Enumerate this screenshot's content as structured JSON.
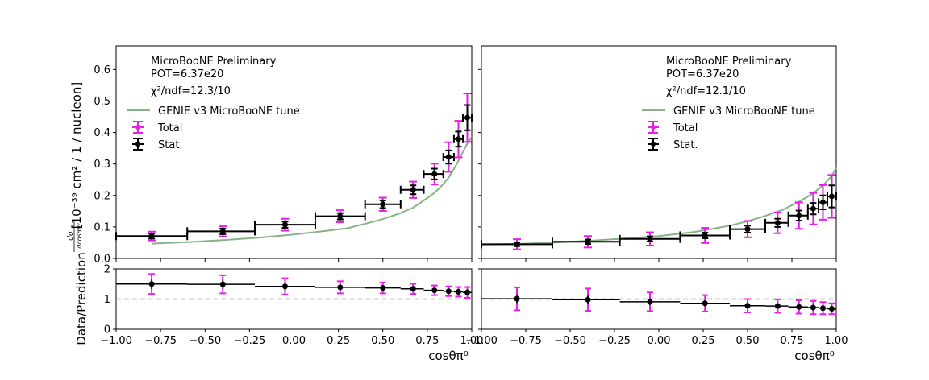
{
  "chart_data": [
    {
      "type": "scatter",
      "panel": "left",
      "ylabel": "[10⁻³⁹ cm² / 1 / nucleon]",
      "ylabel_fraction": {
        "numerator": "dσ",
        "denominator": "dcosθπ⁰"
      },
      "ratio_ylabel": "Data/Prediction",
      "xlabel": "cosθπ⁰",
      "xlim": [
        -1.0,
        1.0
      ],
      "ylim": [
        0,
        0.675
      ],
      "ratio_ylim": [
        0,
        2
      ],
      "xticks": [
        "−1.00",
        "−0.75",
        "−0.50",
        "−0.25",
        "0.00",
        "0.25",
        "0.50",
        "0.75",
        "1.00"
      ],
      "yticks": [
        "0.0",
        "0.1",
        "0.2",
        "0.3",
        "0.4",
        "0.5",
        "0.6"
      ],
      "ratio_yticks": [
        "0",
        "1",
        "2"
      ],
      "annotation": {
        "line1": "MicroBooNE Preliminary",
        "line2": "POT=6.37e20",
        "line3": "χ²/ndf=12.3/10"
      },
      "legend": {
        "placement": "top-left",
        "model": "GENIE v3 MicroBooNE tune",
        "total": "Total",
        "stat": "Stat."
      },
      "colors": {
        "model": "#88b388",
        "total": "#e61ee6",
        "stat": "#000000",
        "ref": "#999999"
      },
      "bins": [
        {
          "lo": -1.0,
          "hi": -0.6,
          "x": -0.8,
          "y": 0.071,
          "stat": 0.008,
          "tot": 0.014
        },
        {
          "lo": -0.6,
          "hi": -0.22,
          "x": -0.4,
          "y": 0.086,
          "stat": 0.009,
          "tot": 0.016
        },
        {
          "lo": -0.22,
          "hi": 0.12,
          "x": -0.05,
          "y": 0.107,
          "stat": 0.01,
          "tot": 0.019
        },
        {
          "lo": 0.12,
          "hi": 0.4,
          "x": 0.26,
          "y": 0.134,
          "stat": 0.01,
          "tot": 0.019
        },
        {
          "lo": 0.4,
          "hi": 0.6,
          "x": 0.5,
          "y": 0.172,
          "stat": 0.012,
          "tot": 0.021
        },
        {
          "lo": 0.6,
          "hi": 0.73,
          "x": 0.67,
          "y": 0.218,
          "stat": 0.014,
          "tot": 0.026
        },
        {
          "lo": 0.73,
          "hi": 0.84,
          "x": 0.79,
          "y": 0.268,
          "stat": 0.017,
          "tot": 0.033
        },
        {
          "lo": 0.84,
          "hi": 0.9,
          "x": 0.87,
          "y": 0.322,
          "stat": 0.021,
          "tot": 0.047
        },
        {
          "lo": 0.9,
          "hi": 0.95,
          "x": 0.925,
          "y": 0.379,
          "stat": 0.024,
          "tot": 0.058
        },
        {
          "lo": 0.95,
          "hi": 1.0,
          "x": 0.975,
          "y": 0.447,
          "stat": 0.04,
          "tot": 0.077
        }
      ],
      "model": [
        [
          -0.8,
          0.047
        ],
        [
          -0.6,
          0.052
        ],
        [
          -0.4,
          0.058
        ],
        [
          -0.2,
          0.066
        ],
        [
          0.0,
          0.076
        ],
        [
          0.2,
          0.089
        ],
        [
          0.3,
          0.096
        ],
        [
          0.4,
          0.11
        ],
        [
          0.5,
          0.125
        ],
        [
          0.6,
          0.144
        ],
        [
          0.67,
          0.161
        ],
        [
          0.73,
          0.184
        ],
        [
          0.79,
          0.208
        ],
        [
          0.84,
          0.236
        ],
        [
          0.87,
          0.257
        ],
        [
          0.9,
          0.285
        ],
        [
          0.925,
          0.31
        ],
        [
          0.95,
          0.338
        ],
        [
          0.975,
          0.365
        ],
        [
          1.0,
          0.385
        ]
      ],
      "ratio": [
        {
          "x": -0.8,
          "y": 1.5,
          "stat": 0.17,
          "tot": 0.33
        },
        {
          "x": -0.4,
          "y": 1.49,
          "stat": 0.16,
          "tot": 0.3
        },
        {
          "x": -0.05,
          "y": 1.42,
          "stat": 0.14,
          "tot": 0.27
        },
        {
          "x": 0.26,
          "y": 1.39,
          "stat": 0.1,
          "tot": 0.2
        },
        {
          "x": 0.5,
          "y": 1.37,
          "stat": 0.09,
          "tot": 0.18
        },
        {
          "x": 0.67,
          "y": 1.34,
          "stat": 0.09,
          "tot": 0.17
        },
        {
          "x": 0.79,
          "y": 1.29,
          "stat": 0.08,
          "tot": 0.16
        },
        {
          "x": 0.87,
          "y": 1.26,
          "stat": 0.08,
          "tot": 0.16
        },
        {
          "x": 0.925,
          "y": 1.24,
          "stat": 0.08,
          "tot": 0.16
        },
        {
          "x": 0.975,
          "y": 1.22,
          "stat": 0.1,
          "tot": 0.18
        }
      ]
    },
    {
      "type": "scatter",
      "panel": "right",
      "xlabel": "cosθπ⁰",
      "xlim": [
        -1.0,
        1.0
      ],
      "ylim": [
        0,
        0.675
      ],
      "ratio_ylim": [
        0,
        2
      ],
      "xticks": [
        "−1.00",
        "−0.75",
        "−0.50",
        "−0.25",
        "0.00",
        "0.25",
        "0.50",
        "0.75",
        "1.00"
      ],
      "annotation": {
        "line1": "MicroBooNE Preliminary",
        "line2": "POT=6.37e20",
        "line3": "χ²/ndf=12.1/10"
      },
      "legend": {
        "placement": "top-right",
        "model": "GENIE v3 MicroBooNE tune",
        "total": "Total",
        "stat": "Stat."
      },
      "colors": {
        "model": "#88b388",
        "total": "#e61ee6",
        "stat": "#000000",
        "ref": "#999999"
      },
      "bins": [
        {
          "lo": -1.0,
          "hi": -0.6,
          "x": -0.8,
          "y": 0.045,
          "stat": 0.006,
          "tot": 0.016
        },
        {
          "lo": -0.6,
          "hi": -0.22,
          "x": -0.4,
          "y": 0.053,
          "stat": 0.007,
          "tot": 0.018
        },
        {
          "lo": -0.22,
          "hi": 0.12,
          "x": -0.05,
          "y": 0.062,
          "stat": 0.008,
          "tot": 0.021
        },
        {
          "lo": 0.12,
          "hi": 0.4,
          "x": 0.26,
          "y": 0.073,
          "stat": 0.009,
          "tot": 0.024
        },
        {
          "lo": 0.4,
          "hi": 0.6,
          "x": 0.5,
          "y": 0.093,
          "stat": 0.011,
          "tot": 0.026
        },
        {
          "lo": 0.6,
          "hi": 0.73,
          "x": 0.67,
          "y": 0.113,
          "stat": 0.013,
          "tot": 0.033
        },
        {
          "lo": 0.73,
          "hi": 0.84,
          "x": 0.79,
          "y": 0.136,
          "stat": 0.016,
          "tot": 0.042
        },
        {
          "lo": 0.84,
          "hi": 0.9,
          "x": 0.87,
          "y": 0.158,
          "stat": 0.018,
          "tot": 0.05
        },
        {
          "lo": 0.9,
          "hi": 0.95,
          "x": 0.925,
          "y": 0.178,
          "stat": 0.022,
          "tot": 0.055
        },
        {
          "lo": 0.95,
          "hi": 1.0,
          "x": 0.975,
          "y": 0.197,
          "stat": 0.035,
          "tot": 0.068
        }
      ],
      "model": [
        [
          -1.0,
          0.044
        ],
        [
          -0.8,
          0.046
        ],
        [
          -0.6,
          0.05
        ],
        [
          -0.4,
          0.056
        ],
        [
          -0.2,
          0.063
        ],
        [
          0.0,
          0.071
        ],
        [
          0.2,
          0.084
        ],
        [
          0.4,
          0.104
        ],
        [
          0.5,
          0.118
        ],
        [
          0.6,
          0.135
        ],
        [
          0.7,
          0.155
        ],
        [
          0.8,
          0.183
        ],
        [
          0.87,
          0.207
        ],
        [
          0.925,
          0.232
        ],
        [
          0.975,
          0.262
        ],
        [
          1.0,
          0.288
        ]
      ],
      "ratio": [
        {
          "x": -0.8,
          "y": 1.01,
          "stat": 0.14,
          "tot": 0.38
        },
        {
          "x": -0.4,
          "y": 0.98,
          "stat": 0.13,
          "tot": 0.37
        },
        {
          "x": -0.05,
          "y": 0.91,
          "stat": 0.11,
          "tot": 0.31
        },
        {
          "x": 0.26,
          "y": 0.86,
          "stat": 0.1,
          "tot": 0.27
        },
        {
          "x": 0.5,
          "y": 0.78,
          "stat": 0.09,
          "tot": 0.22
        },
        {
          "x": 0.67,
          "y": 0.77,
          "stat": 0.09,
          "tot": 0.22
        },
        {
          "x": 0.79,
          "y": 0.74,
          "stat": 0.08,
          "tot": 0.22
        },
        {
          "x": 0.87,
          "y": 0.72,
          "stat": 0.08,
          "tot": 0.22
        },
        {
          "x": 0.925,
          "y": 0.7,
          "stat": 0.08,
          "tot": 0.2
        },
        {
          "x": 0.975,
          "y": 0.68,
          "stat": 0.1,
          "tot": 0.18
        }
      ]
    }
  ]
}
